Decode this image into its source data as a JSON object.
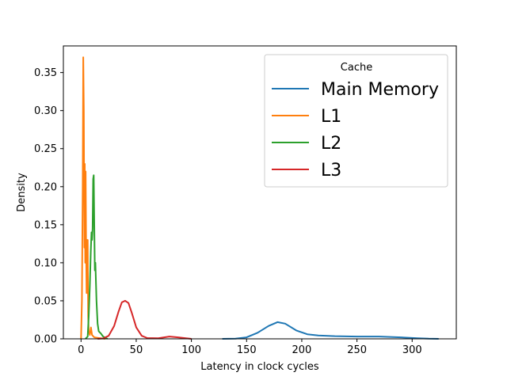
{
  "chart_data": {
    "type": "line",
    "title": "",
    "xlabel": "Latency in clock cycles",
    "ylabel": "Density",
    "xlim": [
      -16,
      340
    ],
    "ylim": [
      0,
      0.385
    ],
    "xticks": [
      0,
      50,
      100,
      150,
      200,
      250,
      300
    ],
    "yticks": [
      0.0,
      0.05,
      0.1,
      0.15,
      0.2,
      0.25,
      0.3,
      0.35
    ],
    "ytick_labels": [
      "0.00",
      "0.05",
      "0.10",
      "0.15",
      "0.20",
      "0.25",
      "0.30",
      "0.35"
    ],
    "grid": false,
    "legend": {
      "title": "Cache",
      "placement": "top-right"
    },
    "series": [
      {
        "name": "Main Memory",
        "color": "#1f77b4",
        "points": [
          [
            128,
            0
          ],
          [
            140,
            0.0002
          ],
          [
            150,
            0.002
          ],
          [
            160,
            0.008
          ],
          [
            170,
            0.017
          ],
          [
            178,
            0.022
          ],
          [
            185,
            0.02
          ],
          [
            195,
            0.011
          ],
          [
            205,
            0.006
          ],
          [
            215,
            0.0045
          ],
          [
            230,
            0.0035
          ],
          [
            250,
            0.003
          ],
          [
            270,
            0.003
          ],
          [
            290,
            0.002
          ],
          [
            305,
            0.0008
          ],
          [
            315,
            0.0002
          ],
          [
            324,
            0
          ]
        ]
      },
      {
        "name": "L1",
        "color": "#ff7f0e",
        "points": [
          [
            0,
            0
          ],
          [
            0.8,
            0.05
          ],
          [
            1.5,
            0.2
          ],
          [
            2,
            0.37
          ],
          [
            2.5,
            0.3
          ],
          [
            3,
            0.12
          ],
          [
            3.4,
            0.23
          ],
          [
            3.8,
            0.1
          ],
          [
            4.2,
            0.22
          ],
          [
            4.6,
            0.12
          ],
          [
            5,
            0.06
          ],
          [
            5.4,
            0.13
          ],
          [
            6,
            0.13
          ],
          [
            6.5,
            0.03
          ],
          [
            7,
            0.01
          ],
          [
            8,
            0.005
          ],
          [
            9,
            0.015
          ],
          [
            10,
            0.005
          ],
          [
            12,
            0.002
          ],
          [
            16,
            0.001
          ],
          [
            22,
            0
          ]
        ]
      },
      {
        "name": "L2",
        "color": "#2ca02c",
        "points": [
          [
            4,
            0
          ],
          [
            6,
            0.003
          ],
          [
            7,
            0.03
          ],
          [
            8,
            0.07
          ],
          [
            8.8,
            0.115
          ],
          [
            9.5,
            0.14
          ],
          [
            10,
            0.13
          ],
          [
            10.5,
            0.145
          ],
          [
            11,
            0.21
          ],
          [
            11.5,
            0.215
          ],
          [
            12,
            0.15
          ],
          [
            12.5,
            0.09
          ],
          [
            13,
            0.1
          ],
          [
            14,
            0.05
          ],
          [
            15,
            0.02
          ],
          [
            16,
            0.01
          ],
          [
            18,
            0.007
          ],
          [
            20,
            0.003
          ],
          [
            24,
            0
          ]
        ]
      },
      {
        "name": "L3",
        "color": "#d62728",
        "points": [
          [
            15,
            0
          ],
          [
            20,
            0.0005
          ],
          [
            25,
            0.004
          ],
          [
            30,
            0.017
          ],
          [
            34,
            0.036
          ],
          [
            37,
            0.048
          ],
          [
            40,
            0.05
          ],
          [
            43,
            0.047
          ],
          [
            46,
            0.034
          ],
          [
            50,
            0.015
          ],
          [
            55,
            0.004
          ],
          [
            60,
            0.001
          ],
          [
            70,
            0.0008
          ],
          [
            80,
            0.003
          ],
          [
            88,
            0.002
          ],
          [
            95,
            0.0008
          ],
          [
            100,
            0
          ]
        ]
      }
    ]
  }
}
